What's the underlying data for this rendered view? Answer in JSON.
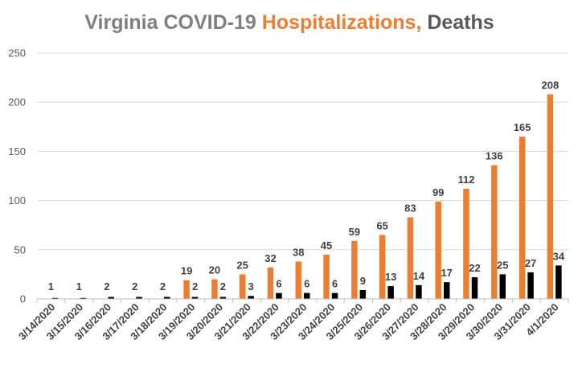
{
  "chart_data": {
    "type": "bar",
    "title_parts": [
      {
        "text": "Virginia COVID-19 ",
        "color": "#7f7f7f"
      },
      {
        "text": "Hospitalizations,",
        "color": "#ed7d31"
      },
      {
        "text": " Deaths",
        "color": "#595959"
      }
    ],
    "categories": [
      "3/14/2020",
      "3/15/2020",
      "3/16/2020",
      "3/17/2020",
      "3/18/2020",
      "3/19/2020",
      "3/20/2020",
      "3/21/2020",
      "3/22/2020",
      "3/23/2020",
      "3/24/2020",
      "3/25/2020",
      "3/26/2020",
      "3/27/2020",
      "3/28/2020",
      "3/29/2020",
      "3/30/2020",
      "3/31/2020",
      "4/1/2020"
    ],
    "series": [
      {
        "name": "Hospitalizations",
        "color": "#ed7d31",
        "values": [
          null,
          null,
          null,
          null,
          null,
          19,
          20,
          25,
          32,
          38,
          45,
          59,
          65,
          83,
          99,
          112,
          136,
          165,
          208
        ]
      },
      {
        "name": "Deaths",
        "color": "#000000",
        "values": [
          1,
          1,
          2,
          2,
          2,
          2,
          2,
          3,
          6,
          6,
          6,
          9,
          13,
          14,
          17,
          22,
          25,
          27,
          34
        ]
      }
    ],
    "yticks": [
      0,
      50,
      100,
      150,
      200,
      250
    ],
    "ylim": [
      0,
      250
    ],
    "grid": true,
    "legend": "none"
  }
}
